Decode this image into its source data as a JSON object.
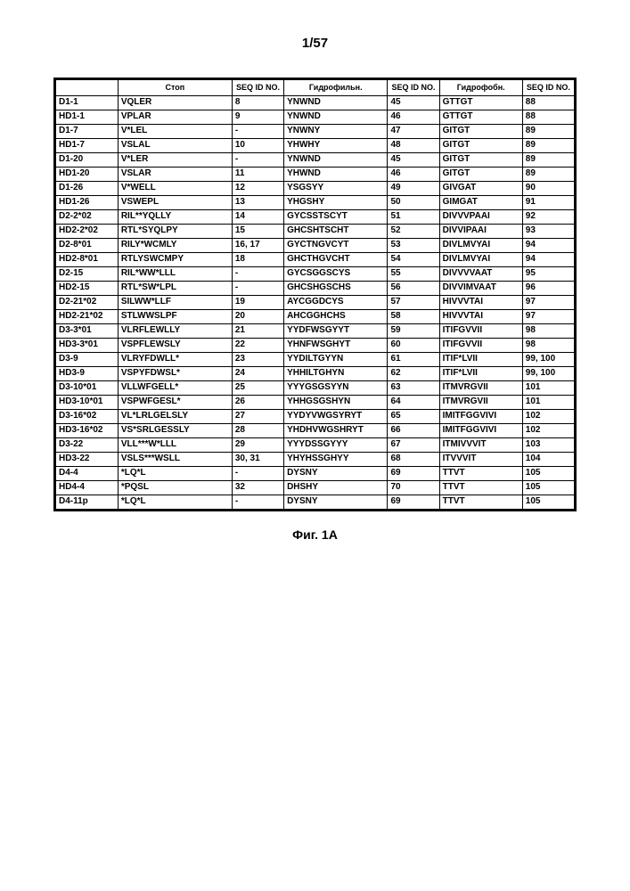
{
  "pageNumber": "1/57",
  "caption": "Фиг. 1A",
  "headers": {
    "id": "",
    "stop": "Стоп",
    "seq1": "SEQ ID NO.",
    "hydrophilic": "Гидрофильн.",
    "seq2": "SEQ ID NO.",
    "hydrophobic": "Гидрофобн.",
    "seq3": "SEQ ID NO."
  },
  "rows": [
    {
      "id": "D1-1",
      "stop": "VQLER",
      "seq1": "8",
      "hf": "YNWND",
      "seq2": "45",
      "hb": "GTTGT",
      "seq3": "88"
    },
    {
      "id": "HD1-1",
      "stop": "VPLAR",
      "seq1": "9",
      "hf": "YNWND",
      "seq2": "46",
      "hb": "GTTGT",
      "seq3": "88"
    },
    {
      "id": "D1-7",
      "stop": "V*LEL",
      "seq1": "-",
      "hf": "YNWNY",
      "seq2": "47",
      "hb": "GITGT",
      "seq3": "89"
    },
    {
      "id": "HD1-7",
      "stop": "VSLAL",
      "seq1": "10",
      "hf": "YHWHY",
      "seq2": "48",
      "hb": "GITGT",
      "seq3": "89"
    },
    {
      "id": "D1-20",
      "stop": "V*LER",
      "seq1": "-",
      "hf": "YNWND",
      "seq2": "45",
      "hb": "GITGT",
      "seq3": "89"
    },
    {
      "id": "HD1-20",
      "stop": "VSLAR",
      "seq1": "11",
      "hf": "YHWND",
      "seq2": "46",
      "hb": "GITGT",
      "seq3": "89"
    },
    {
      "id": "D1-26",
      "stop": "V*WELL",
      "seq1": "12",
      "hf": "YSGSYY",
      "seq2": "49",
      "hb": "GIVGAT",
      "seq3": "90"
    },
    {
      "id": "HD1-26",
      "stop": "VSWEPL",
      "seq1": "13",
      "hf": "YHGSHY",
      "seq2": "50",
      "hb": "GIMGAT",
      "seq3": "91"
    },
    {
      "id": "D2-2*02",
      "stop": "RIL**YQLLY",
      "seq1": "14",
      "hf": "GYCSSTSCYT",
      "seq2": "51",
      "hb": "DIVVVPAAI",
      "seq3": "92"
    },
    {
      "id": "HD2-2*02",
      "stop": "RTL*SYQLPY",
      "seq1": "15",
      "hf": "GHCSHTSCHT",
      "seq2": "52",
      "hb": "DIVVIPAAI",
      "seq3": "93"
    },
    {
      "id": "D2-8*01",
      "stop": "RILY*WCMLY",
      "seq1": "16, 17",
      "hf": "GYCTNGVCYT",
      "seq2": "53",
      "hb": "DIVLMVYAI",
      "seq3": "94"
    },
    {
      "id": "HD2-8*01",
      "stop": "RTLYSWCMPY",
      "seq1": "18",
      "hf": "GHCTHGVCHT",
      "seq2": "54",
      "hb": "DIVLMVYAI",
      "seq3": "94"
    },
    {
      "id": "D2-15",
      "stop": "RIL*WW*LLL",
      "seq1": "-",
      "hf": "GYCSGGSCYS",
      "seq2": "55",
      "hb": "DIVVVVAAT",
      "seq3": "95"
    },
    {
      "id": "HD2-15",
      "stop": "RTL*SW*LPL",
      "seq1": "-",
      "hf": "GHCSHGSCHS",
      "seq2": "56",
      "hb": "DIVVIMVAAT",
      "seq3": "96"
    },
    {
      "id": "D2-21*02",
      "stop": "SILWW*LLF",
      "seq1": "19",
      "hf": "AYCGGDCYS",
      "seq2": "57",
      "hb": "HIVVVTAI",
      "seq3": "97"
    },
    {
      "id": "HD2-21*02",
      "stop": "STLWWSLPF",
      "seq1": "20",
      "hf": "AHCGGHCHS",
      "seq2": "58",
      "hb": "HIVVVTAI",
      "seq3": "97"
    },
    {
      "id": "D3-3*01",
      "stop": "VLRFLEWLLY",
      "seq1": "21",
      "hf": "YYDFWSGYYT",
      "seq2": "59",
      "hb": "ITIFGVVII",
      "seq3": "98"
    },
    {
      "id": "HD3-3*01",
      "stop": "VSPFLEWSLY",
      "seq1": "22",
      "hf": "YHNFWSGHYT",
      "seq2": "60",
      "hb": "ITIFGVVII",
      "seq3": "98"
    },
    {
      "id": "D3-9",
      "stop": "VLRYFDWLL*",
      "seq1": "23",
      "hf": "YYDILTGYYN",
      "seq2": "61",
      "hb": "ITIF*LVII",
      "seq3": "99, 100"
    },
    {
      "id": "HD3-9",
      "stop": "VSPYFDWSL*",
      "seq1": "24",
      "hf": "YHHILTGHYN",
      "seq2": "62",
      "hb": "ITIF*LVII",
      "seq3": "99, 100"
    },
    {
      "id": "D3-10*01",
      "stop": "VLLWFGELL*",
      "seq1": "25",
      "hf": "YYYGSGSYYN",
      "seq2": "63",
      "hb": "ITMVRGVII",
      "seq3": "101"
    },
    {
      "id": "HD3-10*01",
      "stop": "VSPWFGESL*",
      "seq1": "26",
      "hf": "YHHGSGSHYN",
      "seq2": "64",
      "hb": "ITMVRGVII",
      "seq3": "101"
    },
    {
      "id": "D3-16*02",
      "stop": "VL*LRLGELSLY",
      "seq1": "27",
      "hf": "YYDYVWGSYRYT",
      "seq2": "65",
      "hb": "IMITFGGVIVI",
      "seq3": "102"
    },
    {
      "id": "HD3-16*02",
      "stop": "VS*SRLGESSLY",
      "seq1": "28",
      "hf": "YHDHVWGSHRYT",
      "seq2": "66",
      "hb": "IMITFGGVIVI",
      "seq3": "102"
    },
    {
      "id": "D3-22",
      "stop": "VLL***W*LLL",
      "seq1": "29",
      "hf": "YYYDSSGYYY",
      "seq2": "67",
      "hb": "ITMIVVVIT",
      "seq3": "103"
    },
    {
      "id": "HD3-22",
      "stop": "VSLS***WSLL",
      "seq1": "30, 31",
      "hf": "YHYHSSGHYY",
      "seq2": "68",
      "hb": "ITVVVIT",
      "seq3": "104"
    },
    {
      "id": "D4-4",
      "stop": "*LQ*L",
      "seq1": "-",
      "hf": "DYSNY",
      "seq2": "69",
      "hb": "TTVT",
      "seq3": "105"
    },
    {
      "id": "HD4-4",
      "stop": "*PQSL",
      "seq1": "32",
      "hf": "DHSHY",
      "seq2": "70",
      "hb": "TTVT",
      "seq3": "105"
    },
    {
      "id": "D4-11p",
      "stop": "*LQ*L",
      "seq1": "-",
      "hf": "DYSNY",
      "seq2": "69",
      "hb": "TTVT",
      "seq3": "105"
    }
  ]
}
